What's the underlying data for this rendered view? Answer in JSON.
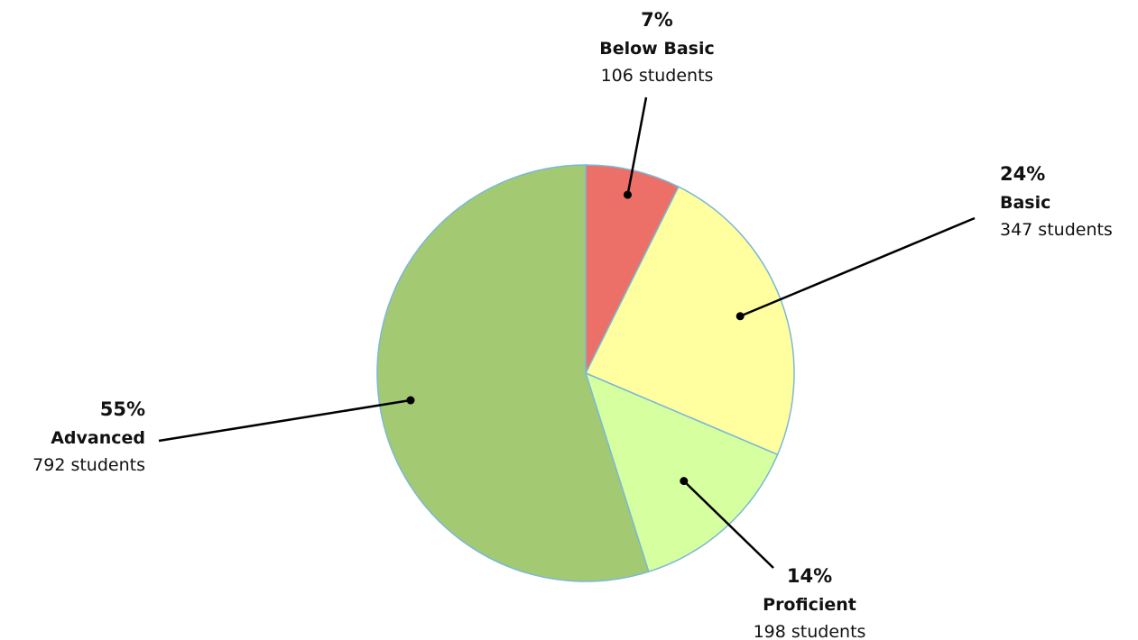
{
  "chart_data": {
    "type": "pie",
    "title": "",
    "slices": [
      {
        "label": "Below Basic",
        "percent_label": "7%",
        "count_label": "106 students",
        "value": 106,
        "color": "#ec6f68"
      },
      {
        "label": "Basic",
        "percent_label": "24%",
        "count_label": "347 students",
        "value": 347,
        "color": "#ffff9f"
      },
      {
        "label": "Proficient",
        "percent_label": "14%",
        "count_label": "198 students",
        "value": 198,
        "color": "#d6ffa0"
      },
      {
        "label": "Advanced",
        "percent_label": "55%",
        "count_label": "792 students",
        "value": 792,
        "color": "#a4c973"
      }
    ],
    "slice_outline_color": "#7bb8d6",
    "start": "12 o'clock",
    "direction": "clockwise"
  }
}
